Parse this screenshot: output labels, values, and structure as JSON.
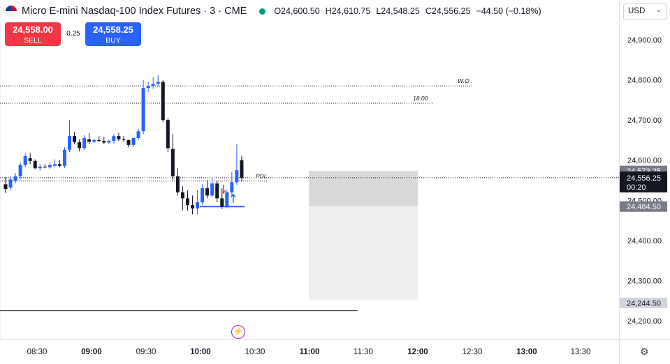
{
  "header": {
    "title": "Micro E-mini Nasdaq-100 Index Futures · 3 · CME",
    "open": "O24,600.50",
    "high": "H24,610.75",
    "low": "L24,548.25",
    "close": "C24,556.25",
    "change": "−44.50 (−0.18%)"
  },
  "trade": {
    "sell_price": "24,558.00",
    "sell_label": "SELL",
    "spread": "0.25",
    "buy_price": "24,558.25",
    "buy_label": "BUY"
  },
  "currency": "USD",
  "icons": {
    "flag": "us-flag-icon",
    "status": "market-open-dot-icon",
    "event": "lightning-event-icon",
    "settings": "gear-icon",
    "dropdown": "chevron-down-icon"
  },
  "colors": {
    "up": "#2962ff",
    "down": "#131722",
    "sell": "#f23645",
    "buy": "#2962ff",
    "event": "#9c27b0"
  },
  "chart_data": {
    "type": "candlestick",
    "y_ticks": [
      "24,900.00",
      "24,800.00",
      "24,700.00",
      "24,600.00",
      "24,500.00",
      "24,400.00",
      "24,300.00",
      "24,200.00"
    ],
    "x_ticks": [
      "08:30",
      "09:00",
      "09:30",
      "10:00",
      "10:30",
      "11:00",
      "11:30",
      "12:00",
      "12:30",
      "13:00",
      "13:30"
    ],
    "ylim": [
      24180,
      24950
    ],
    "candles": [
      {
        "o": 24540,
        "h": 24558,
        "l": 24518,
        "c": 24528
      },
      {
        "o": 24532,
        "h": 24560,
        "l": 24525,
        "c": 24552
      },
      {
        "o": 24548,
        "h": 24568,
        "l": 24542,
        "c": 24560
      },
      {
        "o": 24560,
        "h": 24595,
        "l": 24552,
        "c": 24588
      },
      {
        "o": 24588,
        "h": 24618,
        "l": 24582,
        "c": 24610
      },
      {
        "o": 24605,
        "h": 24618,
        "l": 24590,
        "c": 24598
      },
      {
        "o": 24598,
        "h": 24602,
        "l": 24577,
        "c": 24580
      },
      {
        "o": 24580,
        "h": 24590,
        "l": 24574,
        "c": 24584
      },
      {
        "o": 24584,
        "h": 24590,
        "l": 24580,
        "c": 24582
      },
      {
        "o": 24582,
        "h": 24595,
        "l": 24578,
        "c": 24588
      },
      {
        "o": 24586,
        "h": 24602,
        "l": 24582,
        "c": 24590
      },
      {
        "o": 24590,
        "h": 24600,
        "l": 24582,
        "c": 24586
      },
      {
        "o": 24586,
        "h": 24632,
        "l": 24580,
        "c": 24626
      },
      {
        "o": 24626,
        "h": 24700,
        "l": 24620,
        "c": 24660
      },
      {
        "o": 24660,
        "h": 24670,
        "l": 24640,
        "c": 24645
      },
      {
        "o": 24645,
        "h": 24652,
        "l": 24622,
        "c": 24630
      },
      {
        "o": 24630,
        "h": 24662,
        "l": 24626,
        "c": 24655
      },
      {
        "o": 24652,
        "h": 24668,
        "l": 24640,
        "c": 24646
      },
      {
        "o": 24646,
        "h": 24654,
        "l": 24643,
        "c": 24650
      },
      {
        "o": 24650,
        "h": 24660,
        "l": 24645,
        "c": 24648
      },
      {
        "o": 24648,
        "h": 24658,
        "l": 24640,
        "c": 24644
      },
      {
        "o": 24644,
        "h": 24652,
        "l": 24640,
        "c": 24648
      },
      {
        "o": 24648,
        "h": 24665,
        "l": 24642,
        "c": 24660
      },
      {
        "o": 24660,
        "h": 24668,
        "l": 24648,
        "c": 24652
      },
      {
        "o": 24652,
        "h": 24660,
        "l": 24646,
        "c": 24650
      },
      {
        "o": 24650,
        "h": 24652,
        "l": 24632,
        "c": 24638
      },
      {
        "o": 24638,
        "h": 24658,
        "l": 24632,
        "c": 24655
      },
      {
        "o": 24655,
        "h": 24678,
        "l": 24650,
        "c": 24672
      },
      {
        "o": 24672,
        "h": 24800,
        "l": 24665,
        "c": 24780
      },
      {
        "o": 24780,
        "h": 24795,
        "l": 24770,
        "c": 24785
      },
      {
        "o": 24785,
        "h": 24808,
        "l": 24778,
        "c": 24790
      },
      {
        "o": 24790,
        "h": 24812,
        "l": 24785,
        "c": 24795
      },
      {
        "o": 24795,
        "h": 24800,
        "l": 24695,
        "c": 24700
      },
      {
        "o": 24700,
        "h": 24705,
        "l": 24620,
        "c": 24630
      },
      {
        "o": 24628,
        "h": 24665,
        "l": 24550,
        "c": 24560
      },
      {
        "o": 24560,
        "h": 24580,
        "l": 24512,
        "c": 24520
      },
      {
        "o": 24520,
        "h": 24535,
        "l": 24475,
        "c": 24505
      },
      {
        "o": 24505,
        "h": 24525,
        "l": 24475,
        "c": 24488
      },
      {
        "o": 24488,
        "h": 24512,
        "l": 24465,
        "c": 24480
      },
      {
        "o": 24480,
        "h": 24525,
        "l": 24465,
        "c": 24495
      },
      {
        "o": 24495,
        "h": 24540,
        "l": 24488,
        "c": 24530
      },
      {
        "o": 24530,
        "h": 24550,
        "l": 24505,
        "c": 24512
      },
      {
        "o": 24512,
        "h": 24555,
        "l": 24508,
        "c": 24542
      },
      {
        "o": 24542,
        "h": 24548,
        "l": 24495,
        "c": 24505
      },
      {
        "o": 24505,
        "h": 24530,
        "l": 24478,
        "c": 24484
      },
      {
        "o": 24484,
        "h": 24525,
        "l": 24480,
        "c": 24520
      },
      {
        "o": 24520,
        "h": 24570,
        "l": 24510,
        "c": 24545
      },
      {
        "o": 24545,
        "h": 24640,
        "l": 24538,
        "c": 24575
      },
      {
        "o": 24600,
        "h": 24611,
        "l": 24548,
        "c": 24556
      }
    ],
    "levels": [
      {
        "label": "W.O",
        "value": 24785
      },
      {
        "label": "18:00",
        "value": 24742
      },
      {
        "label": "PDL",
        "value": 24548
      }
    ],
    "support_line": 24484.5,
    "bottom_line": 24225,
    "zone": {
      "top": 24573.25,
      "mid": 24484.5,
      "bottom": 24244.5
    },
    "price_labels": [
      {
        "text": "24,573.25",
        "value": 24573.25,
        "kind": "gray"
      },
      {
        "text": "24,556.25",
        "sub": "00:20",
        "value": 24556.25,
        "kind": "black"
      },
      {
        "text": "24,484.50",
        "value": 24484.5,
        "kind": "gray"
      },
      {
        "text": "24,244.50",
        "value": 24244.5,
        "kind": "light"
      }
    ],
    "markers": [
      {
        "type": "down-arrow",
        "color": "#f23645",
        "candle": 44,
        "value": 24518
      },
      {
        "type": "up-arrow",
        "color": "#2962ff",
        "candle": 46,
        "value": 24515
      }
    ],
    "current_price": 24556.25
  }
}
